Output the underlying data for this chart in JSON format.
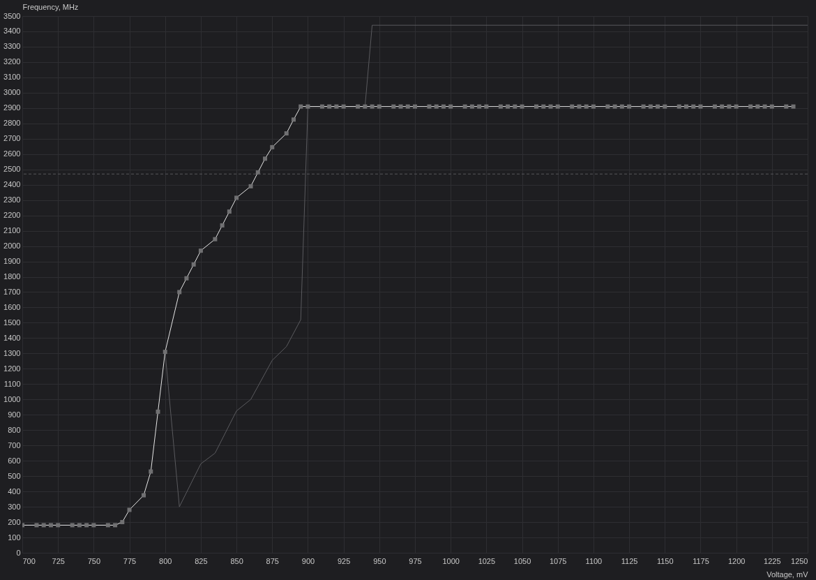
{
  "chart_data": {
    "type": "line",
    "xlabel": "Voltage, mV",
    "ylabel": "Frequency, MHz",
    "xlim": [
      700,
      1250
    ],
    "xticks": [
      700,
      725,
      750,
      775,
      800,
      825,
      850,
      875,
      900,
      925,
      950,
      975,
      1000,
      1025,
      1050,
      1075,
      1100,
      1125,
      1150,
      1175,
      1200,
      1225,
      1250
    ],
    "ylim": [
      0,
      3500
    ],
    "yticks": [
      0,
      100,
      200,
      300,
      400,
      500,
      600,
      700,
      800,
      900,
      1000,
      1100,
      1200,
      1300,
      1400,
      1500,
      1600,
      1700,
      1800,
      1900,
      2000,
      2100,
      2200,
      2300,
      2400,
      2500,
      2600,
      2700,
      2800,
      2900,
      3000,
      3100,
      3200,
      3300,
      3400,
      3500
    ],
    "grid": true,
    "marker": "square",
    "line_style": "solid",
    "ref_lines": [
      {
        "axis": "y",
        "value": 2470,
        "color": "#55565a",
        "line_style": "dashed"
      }
    ],
    "series": [
      {
        "color": "#5a5a5e",
        "marker": "none",
        "x": [
          800,
          810,
          825,
          835,
          850,
          860,
          875,
          885,
          895,
          900,
          940,
          945,
          1250
        ],
        "values": [
          1310,
          300,
          580,
          650,
          925,
          1000,
          1255,
          1345,
          1520,
          2910,
          2910,
          3440,
          3440
        ]
      },
      {
        "color": "#e6e6e6",
        "x": [
          700,
          710,
          715,
          720,
          725,
          735,
          740,
          745,
          750,
          760,
          765,
          770,
          775,
          785,
          790,
          795,
          800,
          810,
          815,
          820,
          825,
          835,
          840,
          845,
          850,
          860,
          865,
          870,
          875,
          885,
          890,
          895,
          900,
          910,
          915,
          920,
          925,
          935,
          940,
          945,
          950,
          960,
          965,
          970,
          975,
          985,
          990,
          995,
          1000,
          1010,
          1015,
          1020,
          1025,
          1035,
          1040,
          1045,
          1050,
          1060,
          1065,
          1070,
          1075,
          1085,
          1090,
          1095,
          1100,
          1110,
          1115,
          1120,
          1125,
          1135,
          1140,
          1145,
          1150,
          1160,
          1165,
          1170,
          1175,
          1185,
          1190,
          1195,
          1200,
          1210,
          1215,
          1220,
          1225,
          1235,
          1240
        ],
        "values": [
          180,
          180,
          180,
          180,
          180,
          180,
          180,
          180,
          180,
          180,
          180,
          200,
          280,
          375,
          530,
          920,
          1310,
          1700,
          1790,
          1880,
          1970,
          2045,
          2135,
          2225,
          2315,
          2390,
          2480,
          2570,
          2645,
          2735,
          2825,
          2910,
          2910,
          2910,
          2910,
          2910,
          2910,
          2910,
          2910,
          2910,
          2910,
          2910,
          2910,
          2910,
          2910,
          2910,
          2910,
          2910,
          2910,
          2910,
          2910,
          2910,
          2910,
          2910,
          2910,
          2910,
          2910,
          2910,
          2910,
          2910,
          2910,
          2910,
          2910,
          2910,
          2910,
          2910,
          2910,
          2910,
          2910,
          2910,
          2910,
          2910,
          2910,
          2910,
          2910,
          2910,
          2910,
          2910,
          2910,
          2910,
          2910,
          2910,
          2910,
          2910,
          2910,
          2910,
          2910
        ]
      }
    ]
  }
}
